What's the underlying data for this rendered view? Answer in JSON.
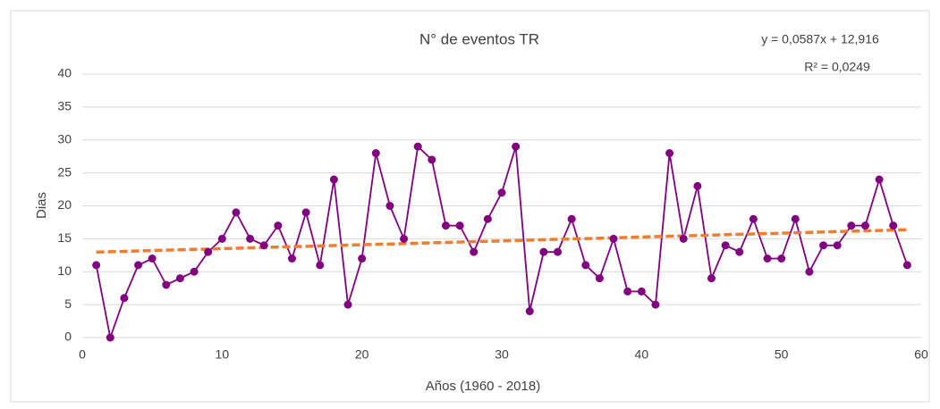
{
  "chart_data": {
    "type": "line",
    "title": "N° de eventos TR",
    "xlabel": "Años (1960 - 2018)",
    "ylabel": "Dias",
    "x": [
      1,
      2,
      3,
      4,
      5,
      6,
      7,
      8,
      9,
      10,
      11,
      12,
      13,
      14,
      15,
      16,
      17,
      18,
      19,
      20,
      21,
      22,
      23,
      24,
      25,
      26,
      27,
      28,
      29,
      30,
      31,
      32,
      33,
      34,
      35,
      36,
      37,
      38,
      39,
      40,
      41,
      42,
      43,
      44,
      45,
      46,
      47,
      48,
      49,
      50,
      51,
      52,
      53,
      54,
      55,
      56,
      57,
      58,
      59
    ],
    "series": [
      {
        "color": "#800080",
        "values": [
          11,
          0,
          6,
          11,
          12,
          8,
          9,
          10,
          13,
          15,
          19,
          15,
          14,
          17,
          12,
          19,
          11,
          24,
          5,
          12,
          28,
          20,
          15,
          29,
          27,
          17,
          17,
          13,
          18,
          22,
          29,
          4,
          13,
          13,
          18,
          11,
          9,
          15,
          7,
          7,
          5,
          28,
          15,
          23,
          9,
          14,
          13,
          18,
          12,
          12,
          18,
          10,
          14,
          14,
          17,
          17,
          24,
          17,
          11
        ]
      }
    ],
    "trendline": {
      "equation": "y = 0,0587x + 12,916",
      "r_squared": "R² = 0,0249",
      "slope": 0.0587,
      "intercept": 12.916,
      "color": "#ed7d31"
    },
    "xlim": [
      0,
      60
    ],
    "xticks": [
      0,
      10,
      20,
      30,
      40,
      50,
      60
    ],
    "ylim": [
      0,
      40
    ],
    "yticks": [
      0,
      5,
      10,
      15,
      20,
      25,
      30,
      35,
      40
    ],
    "grid": true
  }
}
